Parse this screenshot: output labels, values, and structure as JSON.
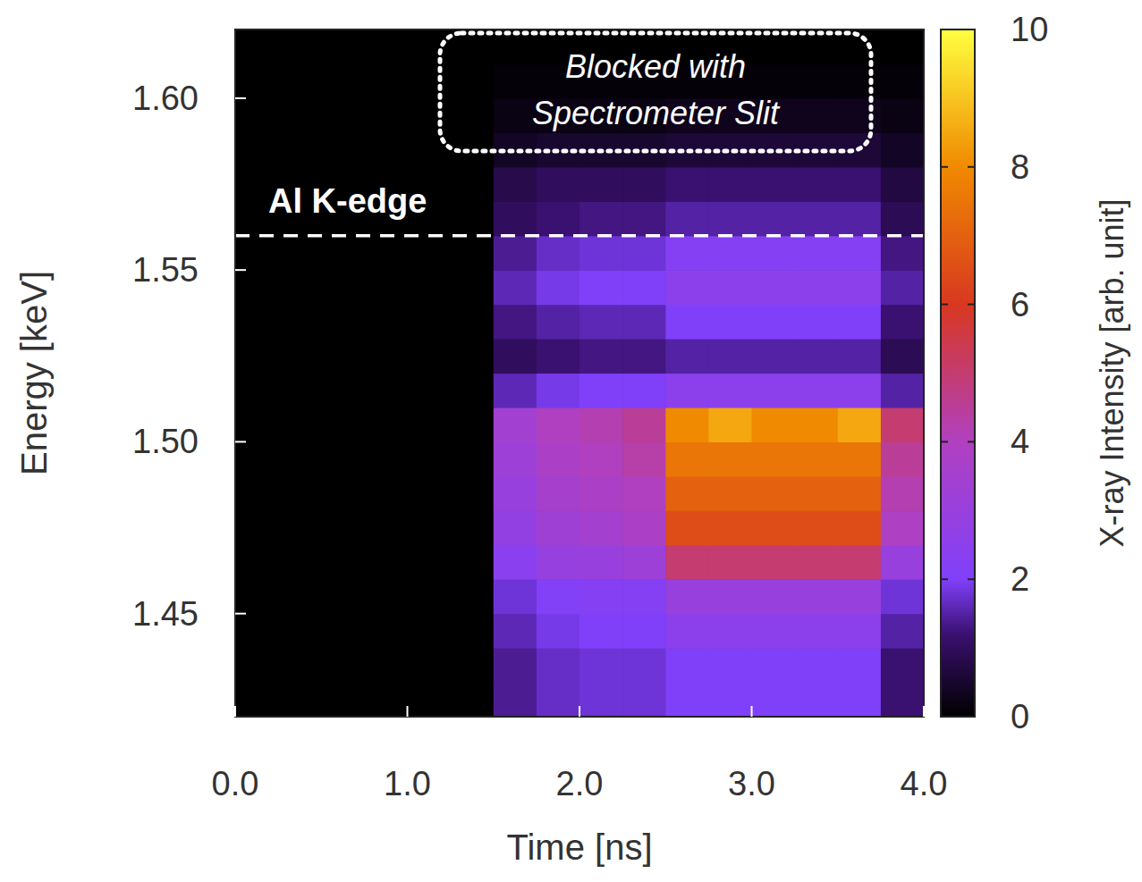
{
  "chart_data": {
    "type": "heatmap",
    "x_label": "Time [ns]",
    "y_label": "Energy [keV]",
    "xlim": [
      0,
      4
    ],
    "ylim": [
      1.42,
      1.62
    ],
    "xticks": [
      {
        "value": 0,
        "label": "0.0"
      },
      {
        "value": 1,
        "label": "1.0"
      },
      {
        "value": 2,
        "label": "2.0"
      },
      {
        "value": 3,
        "label": "3.0"
      },
      {
        "value": 4,
        "label": "4.0"
      }
    ],
    "yticks": [
      1.45,
      {
        "value": 1.5,
        "label": "1.50"
      },
      1.55,
      {
        "value": 1.6,
        "label": "1.60"
      }
    ],
    "x_bins": [
      0,
      0.25,
      0.5,
      0.75,
      1,
      1.25,
      1.5,
      1.75,
      2,
      2.25,
      2.5,
      2.75,
      3,
      3.25,
      3.5,
      3.75,
      4
    ],
    "y_bins": [
      1.42,
      1.43,
      1.44,
      1.45,
      1.46,
      1.47,
      1.48,
      1.49,
      1.5,
      1.51,
      1.52,
      1.53,
      1.54,
      1.55,
      1.56,
      1.57,
      1.58,
      1.59,
      1.6,
      1.61,
      1.62
    ],
    "cells": [
      [
        0,
        0,
        0,
        0,
        0,
        0,
        1.4,
        1.7,
        1.8,
        1.8,
        2,
        2,
        2,
        2,
        2,
        1.2
      ],
      [
        0,
        0,
        0,
        0,
        0,
        0,
        1.4,
        1.7,
        1.8,
        1.8,
        2,
        2,
        2,
        2,
        2,
        1.2
      ],
      [
        0,
        0,
        0,
        0,
        0,
        0,
        1.6,
        1.9,
        2,
        2,
        2.5,
        2.5,
        2.5,
        2.5,
        2.5,
        1.5
      ],
      [
        0,
        0,
        0,
        0,
        0,
        0,
        1.8,
        2.1,
        2.2,
        2.2,
        3,
        3,
        3,
        3,
        3,
        1.8
      ],
      [
        0,
        0,
        0,
        0,
        0,
        0,
        2.4,
        2.9,
        3,
        3.2,
        5,
        5,
        5,
        5,
        5,
        3
      ],
      [
        0,
        0,
        0,
        0,
        0,
        0,
        2.8,
        3.3,
        3.5,
        3.8,
        6.5,
        6.5,
        6.5,
        6.5,
        6.5,
        3.9
      ],
      [
        0,
        0,
        0,
        0,
        0,
        0,
        3,
        3.6,
        3.8,
        4,
        7,
        7,
        7,
        7,
        7,
        4.2
      ],
      [
        0,
        0,
        0,
        0,
        0,
        0,
        3.2,
        3.8,
        4,
        4.3,
        7.5,
        7.5,
        7.5,
        7.5,
        7.5,
        4.5
      ],
      [
        0,
        0,
        0,
        0,
        0,
        0,
        3.4,
        4,
        4.2,
        4.5,
        8,
        8.5,
        8,
        8,
        8.5,
        5
      ],
      [
        0,
        0,
        0,
        0,
        0,
        0,
        1.6,
        1.9,
        2,
        2,
        2.5,
        2.5,
        2.5,
        2.5,
        2.5,
        1.5
      ],
      [
        0,
        0,
        0,
        0,
        0,
        0,
        1,
        1.2,
        1.3,
        1.3,
        1.5,
        1.5,
        1.5,
        1.5,
        1.5,
        0.9
      ],
      [
        0,
        0,
        0,
        0,
        0,
        0,
        1.3,
        1.5,
        1.6,
        1.6,
        2,
        2,
        2,
        2,
        2,
        1.2
      ],
      [
        0,
        0,
        0,
        0,
        0,
        0,
        1.6,
        1.9,
        2,
        2,
        2.5,
        2.5,
        2.5,
        2.5,
        2.5,
        1.5
      ],
      [
        0,
        0,
        0,
        0,
        0,
        0,
        1.4,
        1.7,
        1.8,
        1.8,
        2.2,
        2.2,
        2.2,
        2.2,
        2.2,
        1.3
      ],
      [
        0,
        0,
        0,
        0,
        0,
        0,
        1,
        1.2,
        1.3,
        1.3,
        1.5,
        1.5,
        1.5,
        1.5,
        1.5,
        0.9
      ],
      [
        0,
        0,
        0,
        0,
        0,
        0,
        0.8,
        1,
        1,
        1,
        1.2,
        1.2,
        1.2,
        1.2,
        1.2,
        0.7
      ],
      [
        0,
        0,
        0,
        0,
        0,
        0,
        0.4,
        0.5,
        0.5,
        0.5,
        0.6,
        0.6,
        0.6,
        0.6,
        0.6,
        0.4
      ],
      [
        0,
        0,
        0,
        0,
        0,
        0,
        0.2,
        0.2,
        0.2,
        0.2,
        0.3,
        0.3,
        0.3,
        0.3,
        0.3,
        0.2
      ],
      [
        0,
        0,
        0,
        0,
        0,
        0,
        0.1,
        0.1,
        0.1,
        0.1,
        0.1,
        0.1,
        0.1,
        0.1,
        0.1,
        0.1
      ],
      [
        0,
        0,
        0,
        0,
        0,
        0,
        0,
        0,
        0,
        0,
        0,
        0,
        0,
        0,
        0,
        0
      ]
    ],
    "colorbar": {
      "label": "X-ray Intensity [arb. unit]",
      "range": [
        0,
        10
      ],
      "ticks": [
        0,
        2,
        4,
        6,
        8,
        10
      ]
    },
    "annotations": [
      {
        "text": "Al K-edge",
        "y": 1.56
      },
      {
        "lines": [
          "Blocked with",
          "Spectrometer Slit"
        ]
      }
    ]
  }
}
